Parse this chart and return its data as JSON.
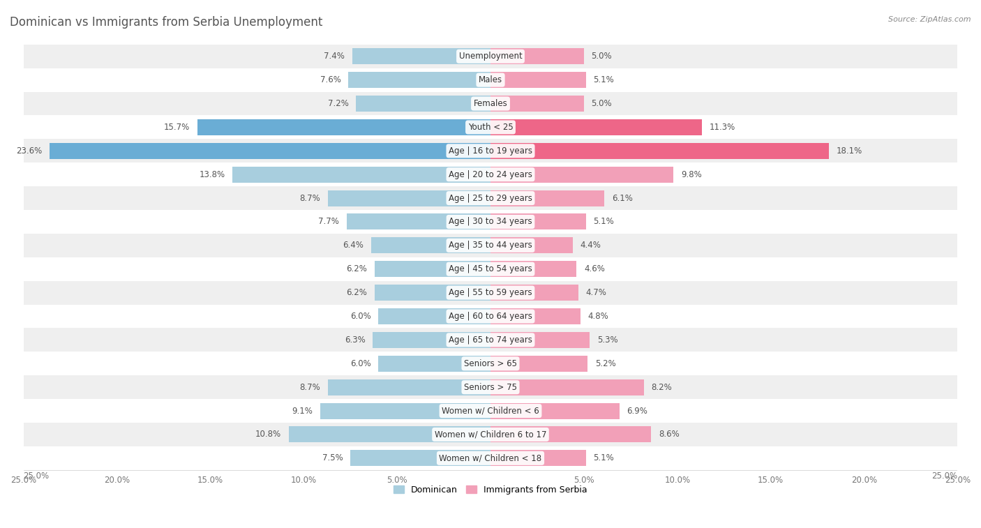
{
  "title": "Dominican vs Immigrants from Serbia Unemployment",
  "source": "Source: ZipAtlas.com",
  "categories": [
    "Unemployment",
    "Males",
    "Females",
    "Youth < 25",
    "Age | 16 to 19 years",
    "Age | 20 to 24 years",
    "Age | 25 to 29 years",
    "Age | 30 to 34 years",
    "Age | 35 to 44 years",
    "Age | 45 to 54 years",
    "Age | 55 to 59 years",
    "Age | 60 to 64 years",
    "Age | 65 to 74 years",
    "Seniors > 65",
    "Seniors > 75",
    "Women w/ Children < 6",
    "Women w/ Children 6 to 17",
    "Women w/ Children < 18"
  ],
  "dominican": [
    7.4,
    7.6,
    7.2,
    15.7,
    23.6,
    13.8,
    8.7,
    7.7,
    6.4,
    6.2,
    6.2,
    6.0,
    6.3,
    6.0,
    8.7,
    9.1,
    10.8,
    7.5
  ],
  "serbia": [
    5.0,
    5.1,
    5.0,
    11.3,
    18.1,
    9.8,
    6.1,
    5.1,
    4.4,
    4.6,
    4.7,
    4.8,
    5.3,
    5.2,
    8.2,
    6.9,
    8.6,
    5.1
  ],
  "dominican_color_normal": "#A8CEDE",
  "dominican_color_highlight": "#6AADD5",
  "serbia_color_normal": "#F2A0B8",
  "serbia_color_highlight": "#EE6688",
  "highlight_rows": [
    3,
    4
  ],
  "bar_height": 0.68,
  "xlim": 25.0,
  "bg_color_stripe": "#efefef",
  "bg_color_white": "#ffffff",
  "label_fontsize": 8.5,
  "category_fontsize": 8.5,
  "title_fontsize": 12,
  "title_color": "#555555",
  "label_color": "#555555",
  "xtick_fontsize": 8.5,
  "legend_fontsize": 9,
  "source_fontsize": 8
}
